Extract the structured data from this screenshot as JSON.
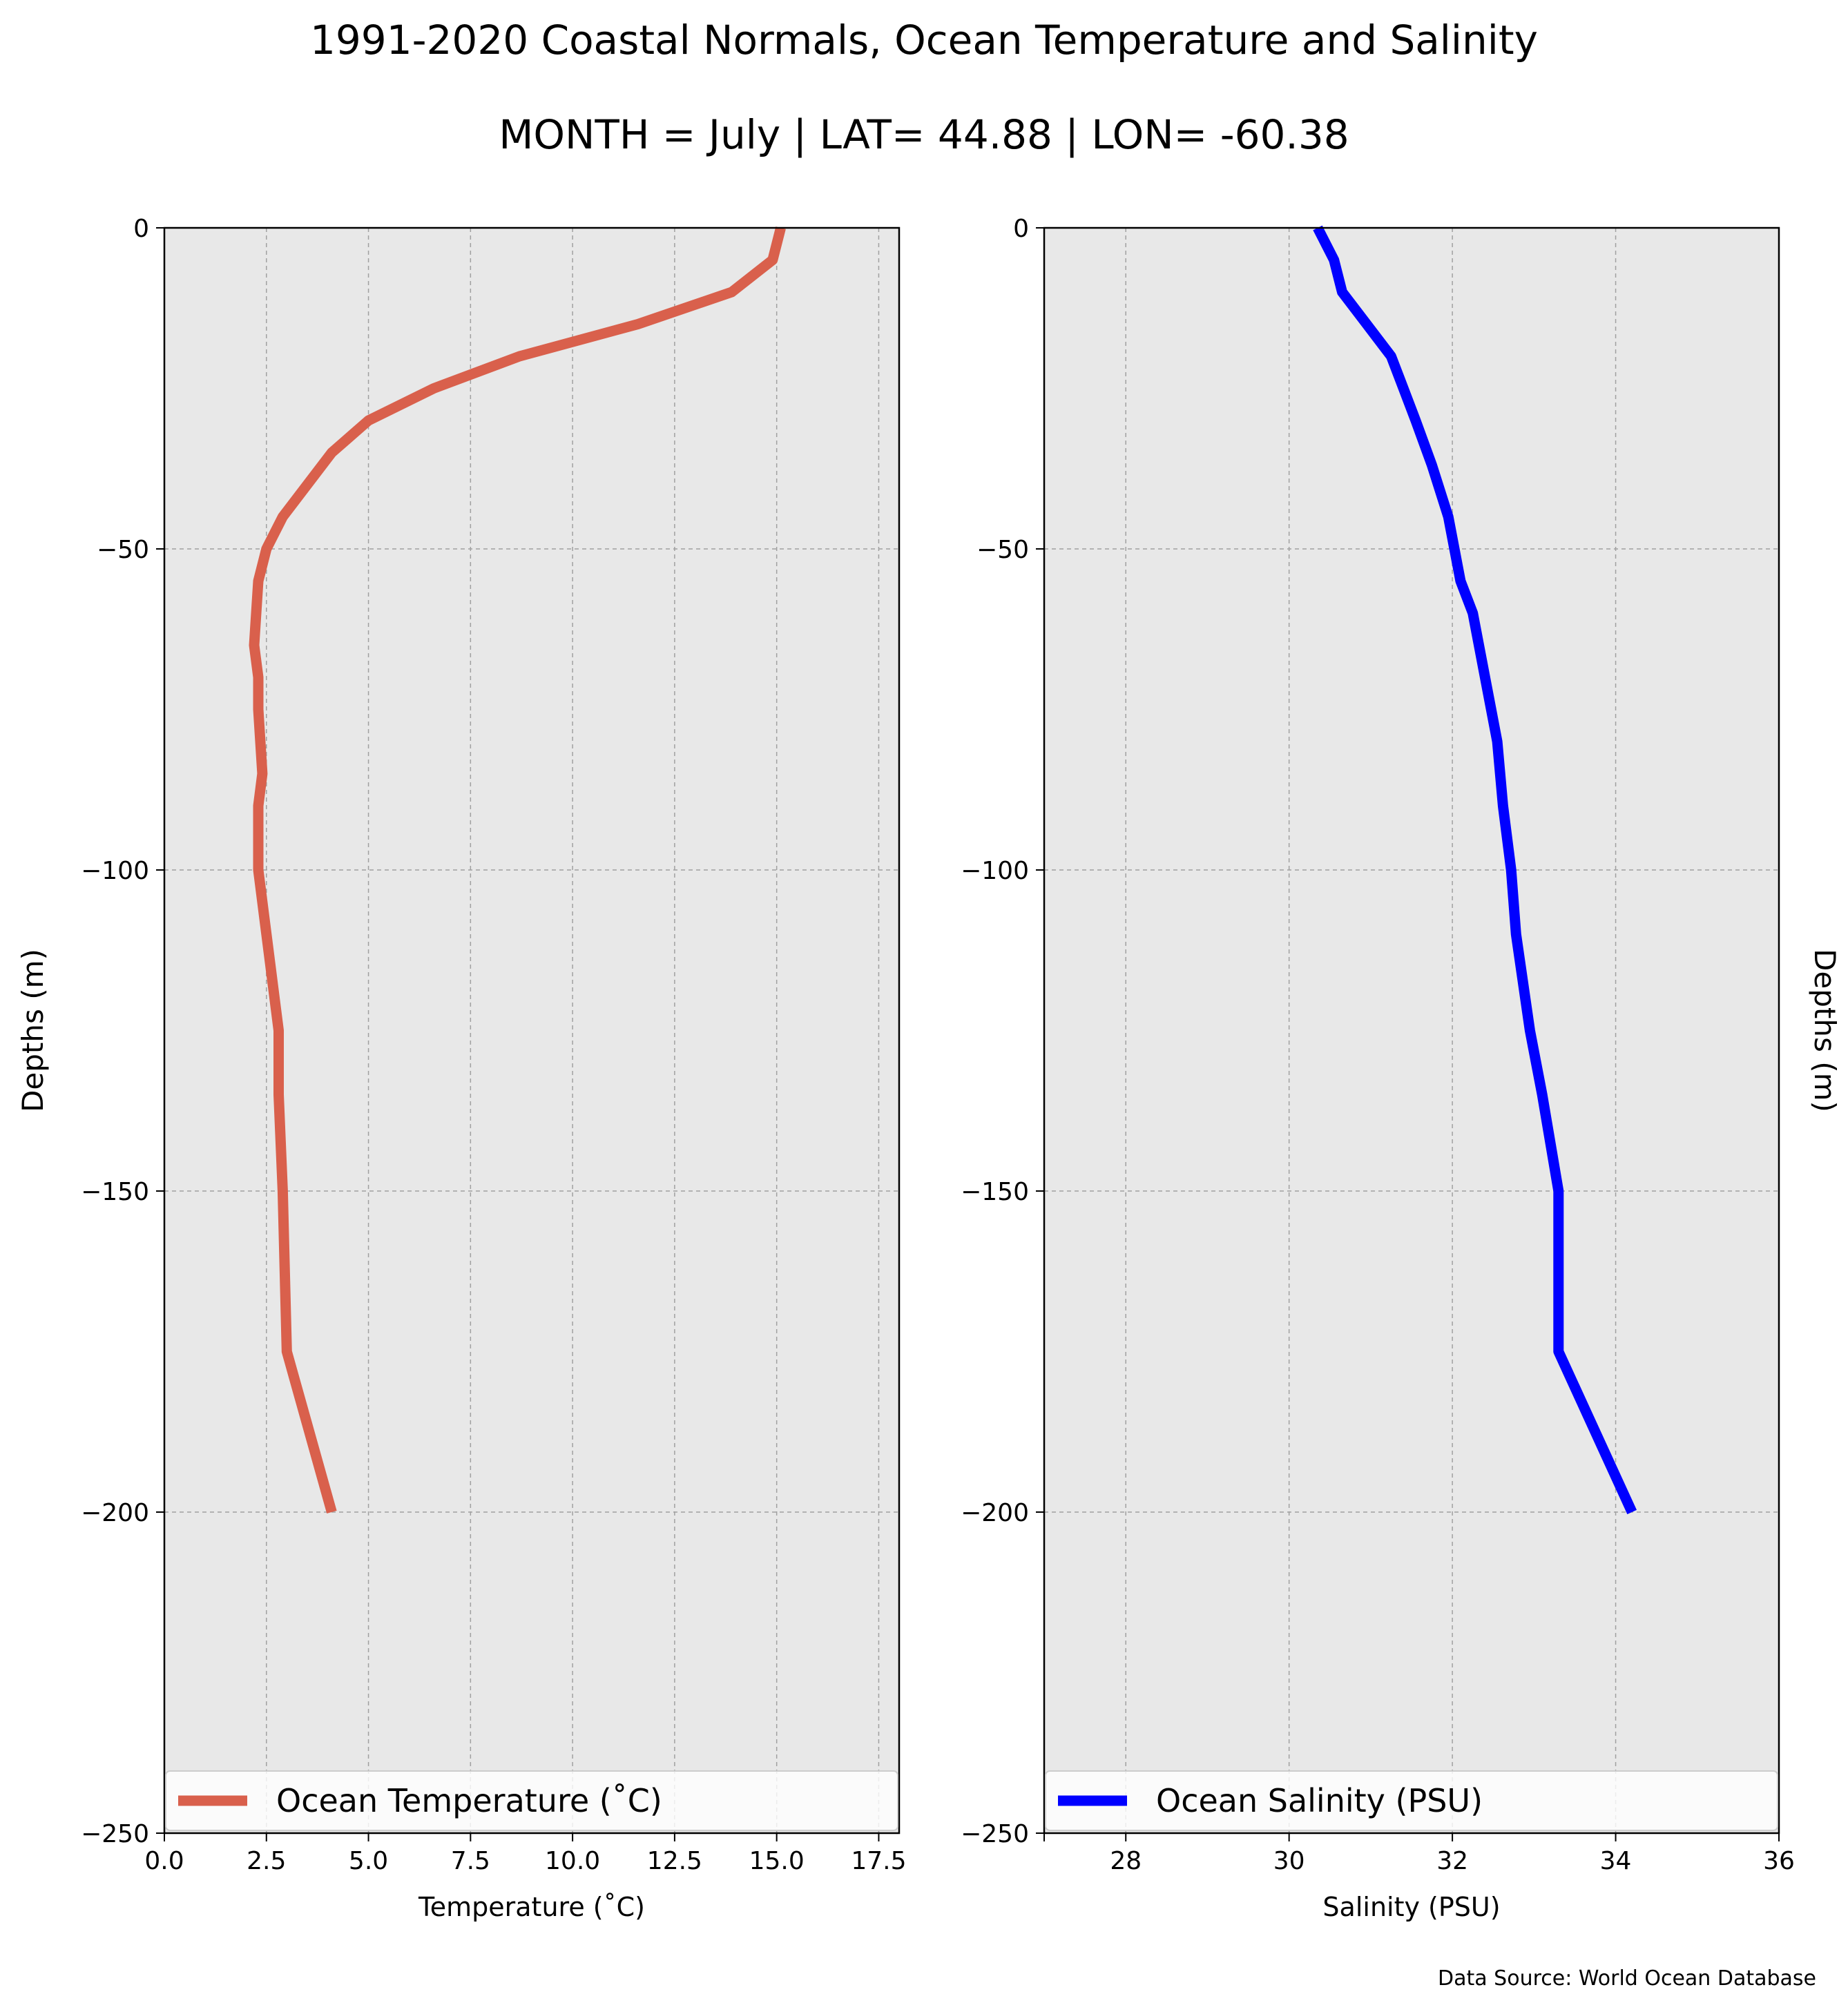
{
  "figure": {
    "title": "1991-2020 Coastal Normals, Ocean Temperature and Salinity",
    "subtitle": "MONTH = July | LAT= 44.88 | LON= -60.38",
    "source": "Data Source: World Ocean Database"
  },
  "colors": {
    "temperature": "#d9604c",
    "salinity": "#0000ff",
    "panel_bg": "#e8e8e8",
    "grid": "#a0a0a0"
  },
  "chart_data": [
    {
      "type": "line",
      "xlabel": "Temperature ($^\\circ$C)",
      "ylabel": "Depths (m)",
      "xlim": [
        0,
        18
      ],
      "ylim": [
        -250,
        0
      ],
      "x_ticks": [
        0,
        2.5,
        5,
        7.5,
        10,
        12.5,
        15,
        17.5
      ],
      "x_tick_labels": [
        "0.0",
        "2.5",
        "5.0",
        "7.5",
        "10.0",
        "12.5",
        "15.0",
        "17.5"
      ],
      "y_ticks": [
        0,
        -50,
        -100,
        -150,
        -200,
        -250
      ],
      "y_tick_labels": [
        "0",
        "−50",
        "−100",
        "−150",
        "−200",
        "−250"
      ],
      "grid": true,
      "legend_position": "lower-center",
      "series": [
        {
          "name": "Ocean Temperature ($^\\circ$C)",
          "x": [
            15.1,
            14.9,
            13.9,
            11.6,
            8.7,
            6.6,
            5.0,
            4.1,
            3.5,
            2.9,
            2.5,
            2.3,
            2.2,
            2.3,
            2.3,
            2.4,
            2.3,
            2.3,
            2.5,
            2.8,
            2.8,
            2.9,
            3.0,
            4.1
          ],
          "y": [
            0,
            -5,
            -10,
            -15,
            -20,
            -25,
            -30,
            -35,
            -40,
            -45,
            -50,
            -55,
            -65,
            -70,
            -75,
            -85,
            -90,
            -100,
            -110,
            -125,
            -135,
            -150,
            -175,
            -200
          ]
        }
      ]
    },
    {
      "type": "line",
      "xlabel": "Salinity (PSU)",
      "ylabel": "Depths (m)",
      "xlim": [
        27,
        36
      ],
      "ylim": [
        -250,
        0
      ],
      "x_ticks": [
        28,
        30,
        32,
        34,
        36
      ],
      "x_tick_labels": [
        "28",
        "30",
        "32",
        "34",
        "36"
      ],
      "y_ticks": [
        0,
        -50,
        -100,
        -150,
        -200,
        -250
      ],
      "y_tick_labels": [
        "0",
        "−50",
        "−100",
        "−150",
        "−200",
        "−250"
      ],
      "grid": true,
      "legend_position": "lower-center",
      "series": [
        {
          "name": "Ocean Salinity (PSU)",
          "x": [
            30.35,
            30.55,
            30.65,
            30.95,
            31.25,
            31.4,
            31.55,
            31.75,
            31.95,
            32.1,
            32.25,
            32.4,
            32.55,
            32.62,
            32.72,
            32.78,
            32.95,
            33.1,
            33.3,
            33.3,
            34.2
          ],
          "y": [
            0,
            -5,
            -10,
            -15,
            -20,
            -25,
            -30,
            -37,
            -45,
            -55,
            -60,
            -70,
            -80,
            -90,
            -100,
            -110,
            -125,
            -135,
            -150,
            -175,
            -200
          ]
        }
      ]
    }
  ]
}
